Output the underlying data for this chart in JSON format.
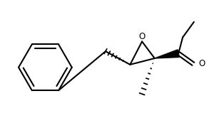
{
  "bg_color": "#ffffff",
  "line_color": "#000000",
  "line_width": 1.5,
  "fig_width": 2.93,
  "fig_height": 1.66,
  "dpi": 100
}
